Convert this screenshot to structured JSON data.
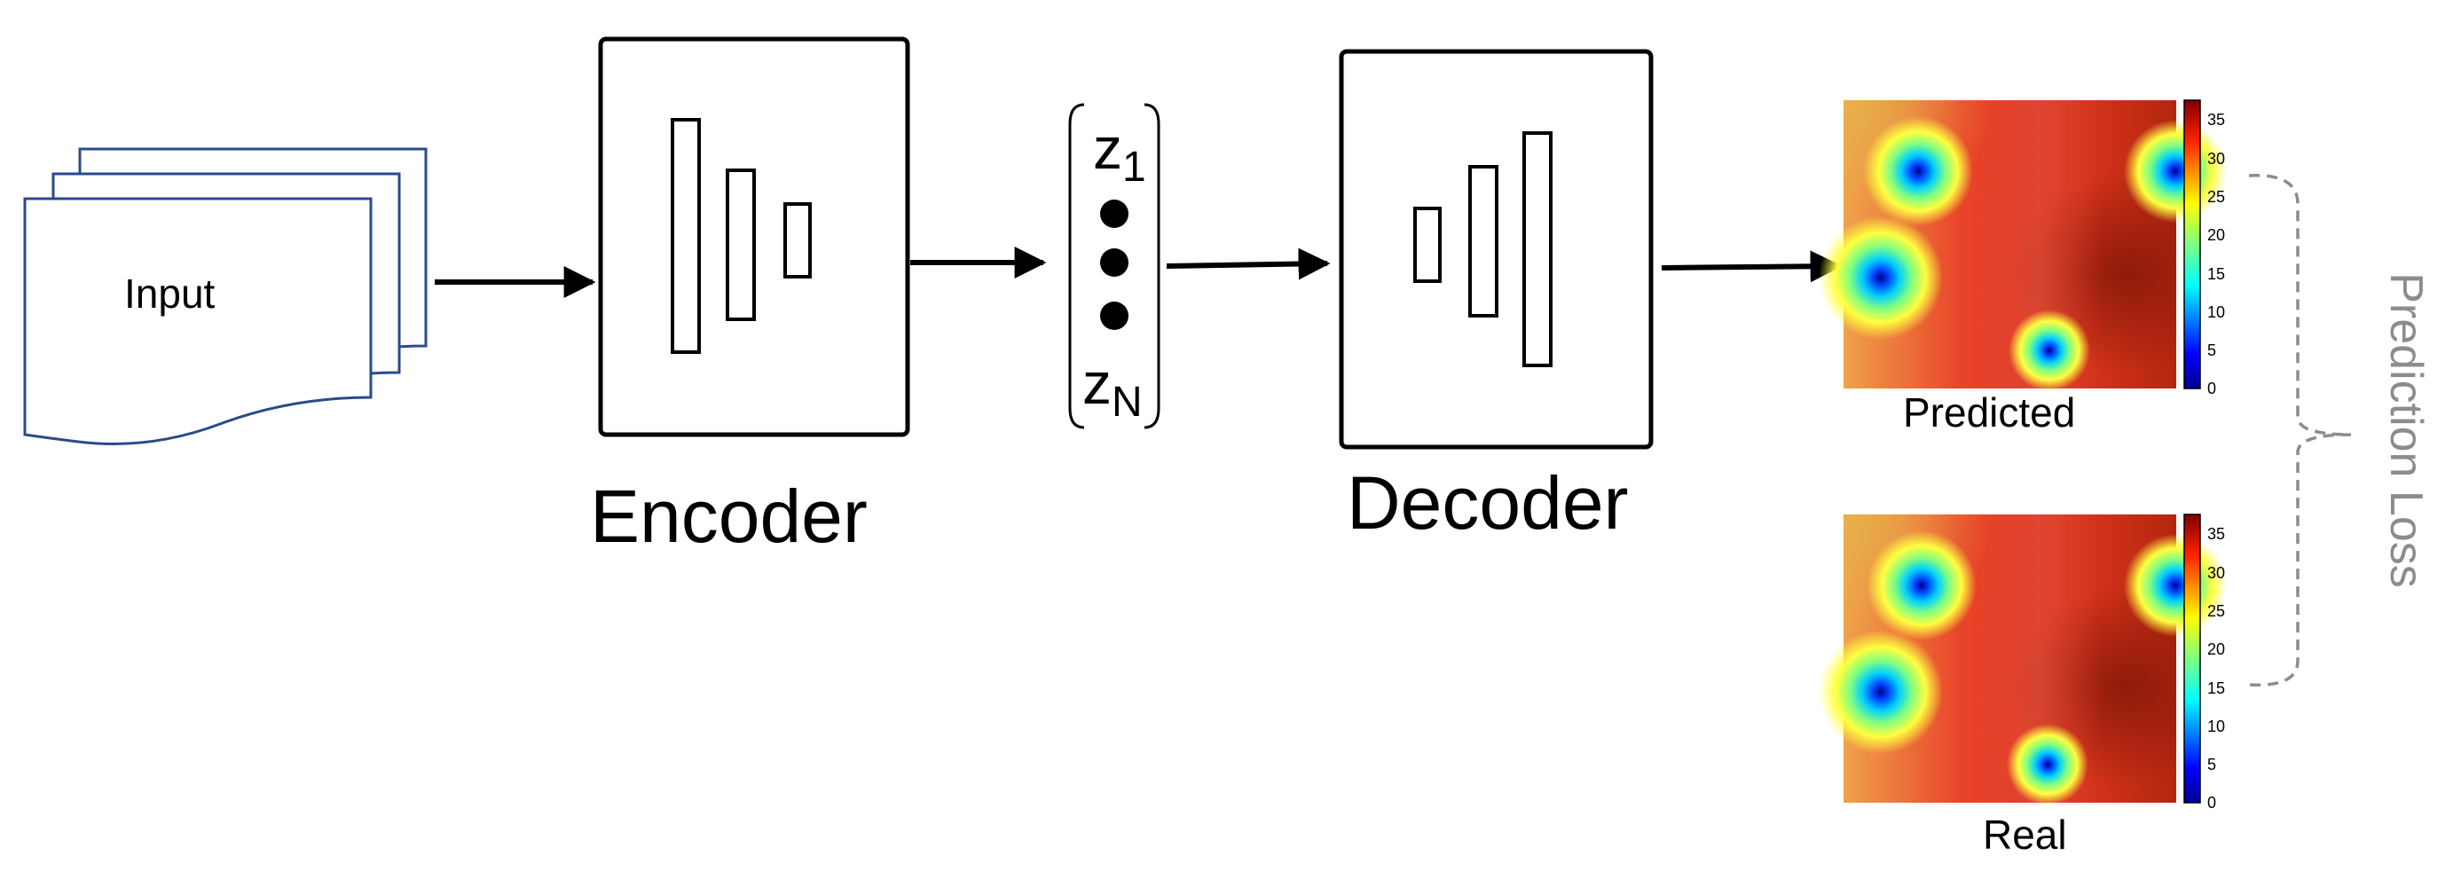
{
  "labels": {
    "input": "Input",
    "encoder": "Encoder",
    "decoder": "Decoder",
    "latent_first": "z",
    "latent_first_sub": "1",
    "latent_last": "z",
    "latent_last_sub": "N",
    "predicted": "Predicted",
    "real": "Real",
    "loss": "Prediction Loss"
  },
  "colorbar_ticks": [
    "35",
    "30",
    "25",
    "20",
    "15",
    "10",
    "5",
    "0"
  ],
  "colors": {
    "input_stroke": "#2b4a8c",
    "loss_bracket": "#8c8c8c",
    "heatmap_hot": "#e53a20",
    "heatmap_dark": "#8b1a0a"
  }
}
